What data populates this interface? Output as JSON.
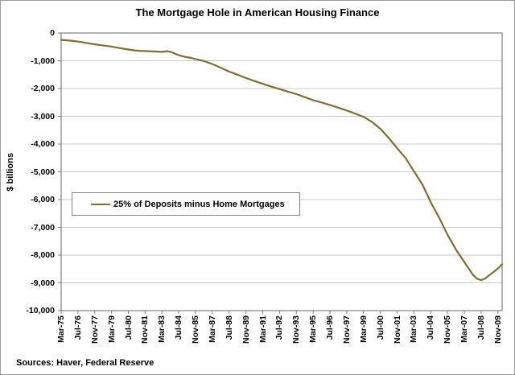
{
  "title": "The Mortgage Hole in American Housing Finance",
  "legend": {
    "label": "25% of Deposits minus Home Mortgages"
  },
  "footer": {
    "sources": "Sources: Haver, Federal Reserve"
  },
  "colors": {
    "line": "#7F6E33",
    "grid": "#C8C8C8",
    "axis": "#7F7F7F",
    "text": "#000000",
    "background": "#FFFFFF"
  },
  "chart_data": {
    "type": "line",
    "title": "The Mortgage Hole in American Housing Finance",
    "xlabel": "",
    "ylabel": "$ billions",
    "ylim": [
      -10000,
      0
    ],
    "grid": "horizontal",
    "legend_position": "inside-left",
    "y_ticks": [
      0,
      -1000,
      -2000,
      -3000,
      -4000,
      -5000,
      -6000,
      -7000,
      -8000,
      -9000,
      -10000
    ],
    "y_tick_labels": [
      "0",
      "-1,000",
      "-2,000",
      "-3,000",
      "-4,000",
      "-5,000",
      "-6,000",
      "-7,000",
      "-8,000",
      "-9,000",
      "-10,000"
    ],
    "x_start": "1975-03",
    "x_tick_interval_months": 16,
    "x_tick_labels": [
      "Mar-75",
      "Jul-76",
      "Nov-77",
      "Mar-79",
      "Jul-80",
      "Nov-81",
      "Mar-83",
      "Jul-84",
      "Nov-85",
      "Mar-87",
      "Jul-88",
      "Nov-89",
      "Mar-91",
      "Jul-92",
      "Nov-93",
      "Mar-95",
      "Jul-96",
      "Nov-97",
      "Mar-99",
      "Jul-00",
      "Nov-01",
      "Mar-03",
      "Jul-04",
      "Nov-05",
      "Mar-07",
      "Jul-08",
      "Nov-09"
    ],
    "series": [
      {
        "name": "25% of Deposits minus Home Mortgages",
        "points": [
          [
            "1975-03",
            -250
          ],
          [
            "1975-09",
            -265
          ],
          [
            "1976-03",
            -290
          ],
          [
            "1976-07",
            -310
          ],
          [
            "1976-11",
            -330
          ],
          [
            "1977-05",
            -370
          ],
          [
            "1977-11",
            -410
          ],
          [
            "1978-05",
            -440
          ],
          [
            "1978-11",
            -470
          ],
          [
            "1979-03",
            -490
          ],
          [
            "1979-09",
            -530
          ],
          [
            "1980-03",
            -570
          ],
          [
            "1980-07",
            -595
          ],
          [
            "1981-01",
            -625
          ],
          [
            "1981-07",
            -645
          ],
          [
            "1981-11",
            -650
          ],
          [
            "1982-05",
            -660
          ],
          [
            "1982-11",
            -670
          ],
          [
            "1983-03",
            -680
          ],
          [
            "1983-08",
            -655
          ],
          [
            "1984-01",
            -700
          ],
          [
            "1984-07",
            -800
          ],
          [
            "1985-01",
            -860
          ],
          [
            "1985-07",
            -900
          ],
          [
            "1985-11",
            -940
          ],
          [
            "1986-07",
            -1010
          ],
          [
            "1987-03",
            -1120
          ],
          [
            "1987-11",
            -1250
          ],
          [
            "1988-07",
            -1390
          ],
          [
            "1989-03",
            -1500
          ],
          [
            "1989-11",
            -1620
          ],
          [
            "1990-07",
            -1730
          ],
          [
            "1991-03",
            -1830
          ],
          [
            "1991-11",
            -1930
          ],
          [
            "1992-07",
            -2020
          ],
          [
            "1993-03",
            -2110
          ],
          [
            "1993-11",
            -2200
          ],
          [
            "1994-07",
            -2310
          ],
          [
            "1995-03",
            -2420
          ],
          [
            "1995-11",
            -2500
          ],
          [
            "1996-07",
            -2590
          ],
          [
            "1997-03",
            -2690
          ],
          [
            "1997-11",
            -2790
          ],
          [
            "1998-07",
            -2900
          ],
          [
            "1999-03",
            -3020
          ],
          [
            "1999-11",
            -3200
          ],
          [
            "2000-07",
            -3450
          ],
          [
            "2001-03",
            -3780
          ],
          [
            "2001-11",
            -4150
          ],
          [
            "2002-07",
            -4500
          ],
          [
            "2003-03",
            -4980
          ],
          [
            "2003-11",
            -5450
          ],
          [
            "2004-07",
            -6100
          ],
          [
            "2005-03",
            -6650
          ],
          [
            "2005-11",
            -7270
          ],
          [
            "2006-07",
            -7800
          ],
          [
            "2007-03",
            -8250
          ],
          [
            "2007-11",
            -8700
          ],
          [
            "2008-03",
            -8850
          ],
          [
            "2008-07",
            -8900
          ],
          [
            "2008-11",
            -8840
          ],
          [
            "2009-03",
            -8720
          ],
          [
            "2009-07",
            -8600
          ],
          [
            "2009-11",
            -8480
          ],
          [
            "2010-03",
            -8330
          ]
        ]
      }
    ]
  }
}
